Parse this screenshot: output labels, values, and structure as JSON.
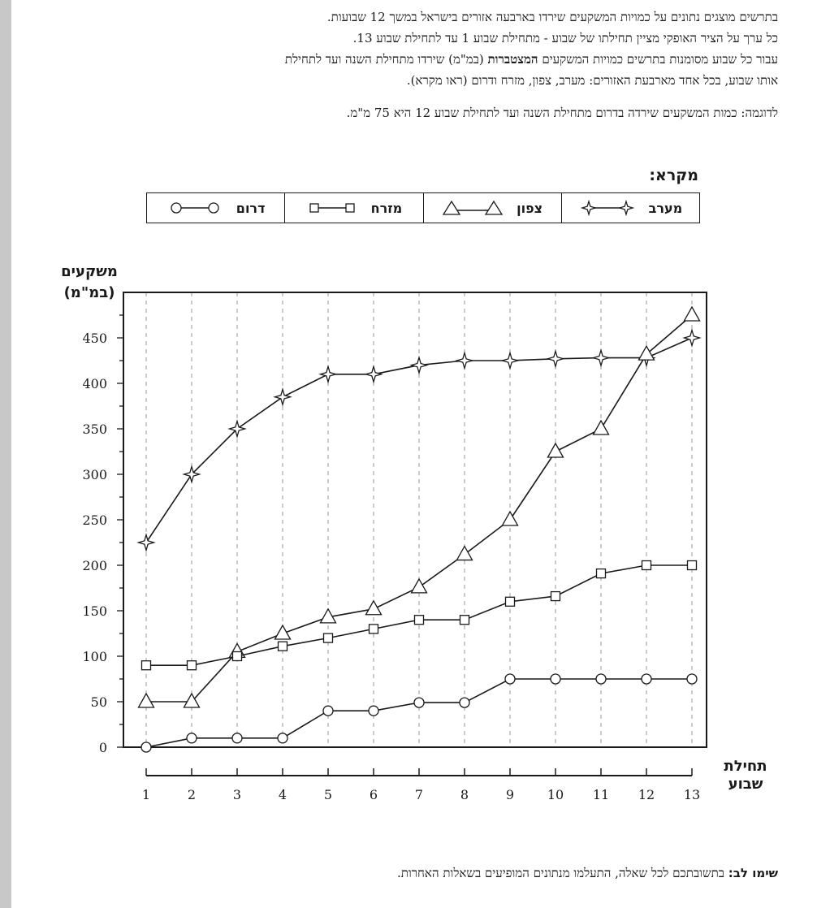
{
  "intro": {
    "line1": "בתרשים מוצגים נתונים על כמויות המשקעים שירדו בארבעה אזורים בישראל במשך 12 שבועות.",
    "line2": "כל ערך על הציר האופקי מציין תחילתו של שבוע - מתחילת שבוע 1 עד לתחילת שבוע 13.",
    "line3_before": "עבור כל שבוע מסומנות בתרשים כמויות המשקעים",
    "line3_bold": "המצטברות",
    "line3_after": "(במ\"מ) שירדו מתחילת השנה ועד לתחילת",
    "line4": "אותו שבוע, בכל אחד מארבעת האזורים: מערב, צפון, מזרח ודרום (ראו מקרא).",
    "example": "לדוגמה: כמות המשקעים שירדה בדרום מתחילת השנה ועד לתחילת שבוע 12 היא 75 מ\"מ."
  },
  "legend": {
    "title": "מקרא:",
    "items": [
      {
        "label": "מערב",
        "marker": "star"
      },
      {
        "label": "צפון",
        "marker": "triangle"
      },
      {
        "label": "מזרח",
        "marker": "square"
      },
      {
        "label": "דרום",
        "marker": "circle"
      }
    ]
  },
  "note": {
    "bold": "שימו לב:",
    "text": "בתשובתכם לכל שאלה, התעלמו מנתונים המופיעים בשאלות האחרות."
  },
  "chart_data": {
    "type": "line",
    "ylabel": "משקעים",
    "ylabel_unit": "(במ\"מ)",
    "xlabel_line1": "תחילת",
    "xlabel_line2": "שבוע",
    "x": [
      1,
      2,
      3,
      4,
      5,
      6,
      7,
      8,
      9,
      10,
      11,
      12,
      13
    ],
    "ylim": [
      0,
      500
    ],
    "yticks": [
      0,
      50,
      100,
      150,
      200,
      250,
      300,
      350,
      400,
      450
    ],
    "grid": "vertical dashed",
    "legend_position": "top",
    "series": [
      {
        "name": "מערב",
        "marker": "star",
        "values": [
          225,
          300,
          350,
          385,
          410,
          410,
          420,
          425,
          425,
          427,
          428,
          428,
          450
        ]
      },
      {
        "name": "צפון",
        "marker": "triangle",
        "values": [
          50,
          50,
          105,
          125,
          143,
          152,
          176,
          212,
          250,
          325,
          350,
          432,
          475
        ]
      },
      {
        "name": "מזרח",
        "marker": "square",
        "values": [
          90,
          90,
          100,
          111,
          120,
          130,
          140,
          140,
          160,
          166,
          191,
          200,
          200
        ]
      },
      {
        "name": "דרום",
        "marker": "circle",
        "values": [
          0,
          10,
          10,
          10,
          40,
          40,
          49,
          49,
          75,
          75,
          75,
          75,
          75
        ]
      }
    ]
  }
}
